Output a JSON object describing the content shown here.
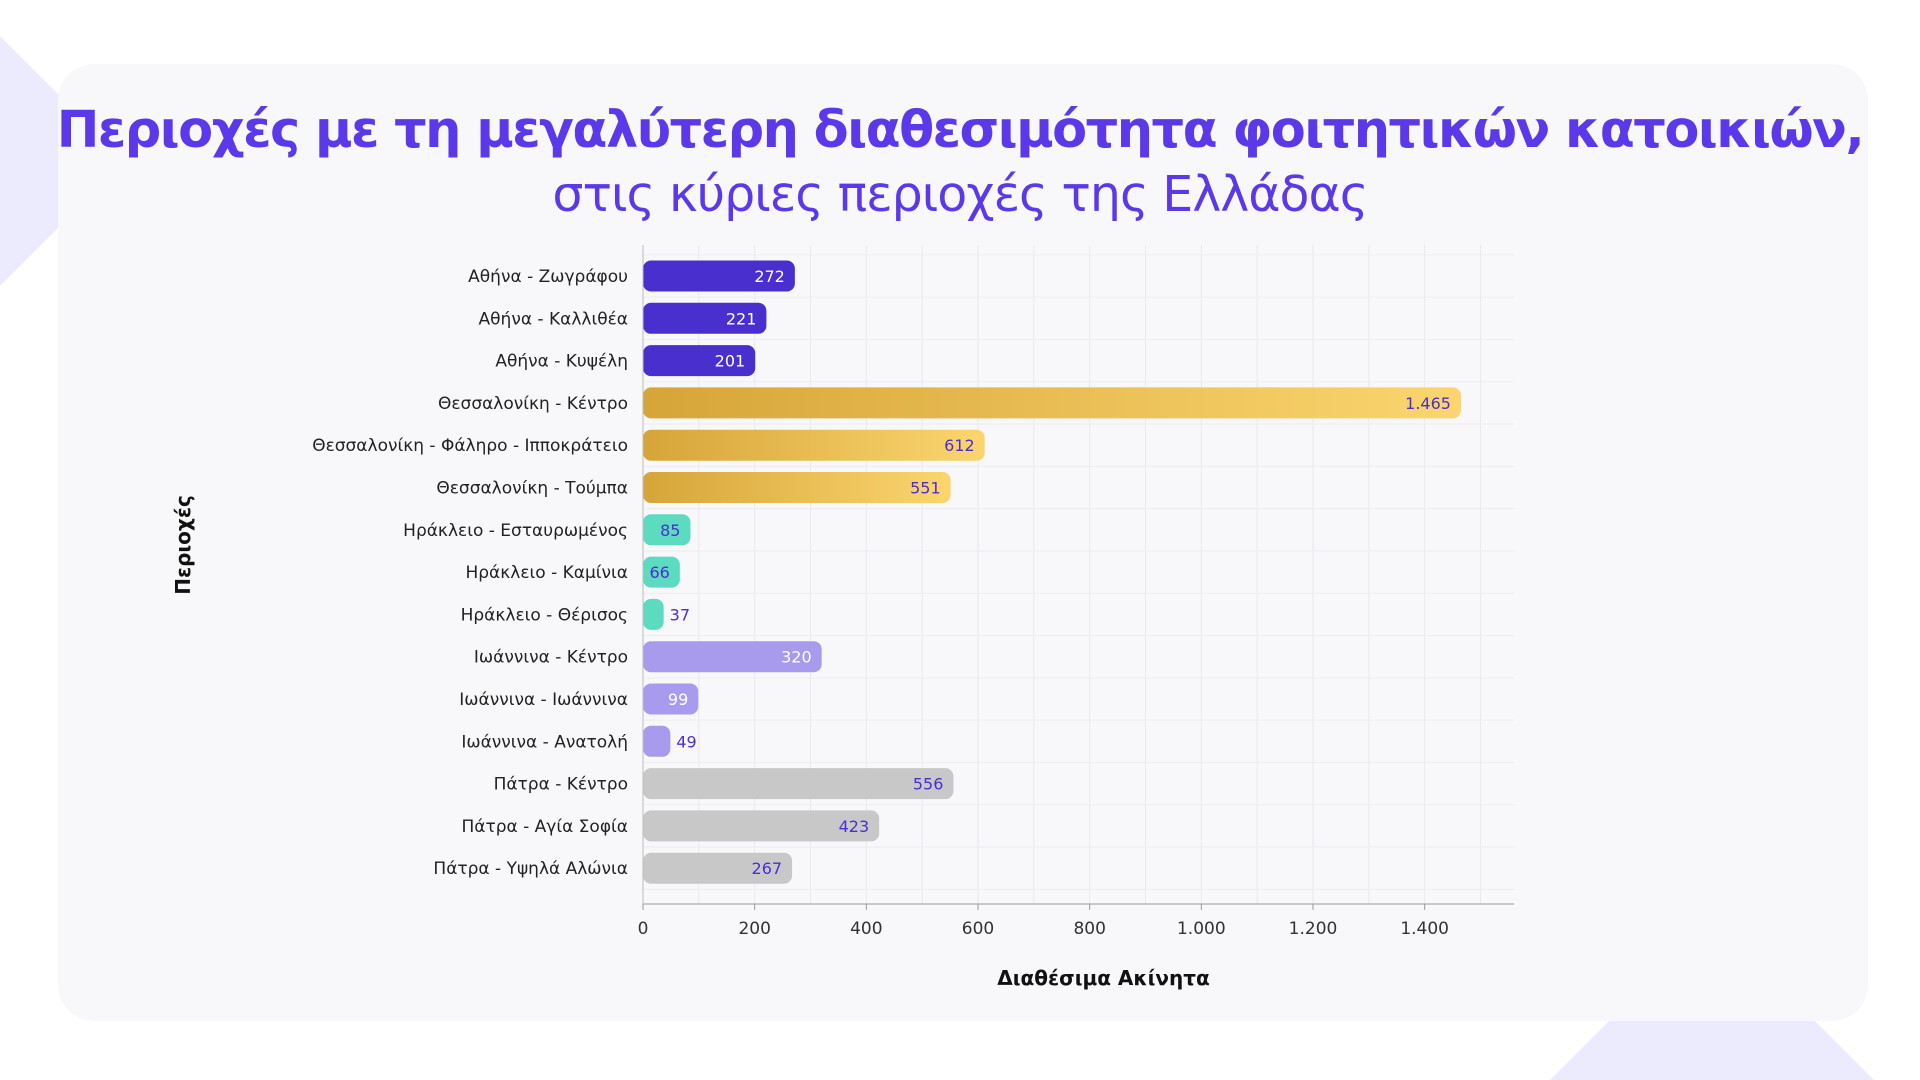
{
  "title": {
    "main": "Περιοχές με τη μεγαλύτερη διαθεσιμότητα φοιτητικών κατοικιών,",
    "sub": "στις κύριες περιοχές της Ελλάδας"
  },
  "icons": {
    "decoration": "graduation-cap-icon"
  },
  "colors": {
    "title": "#5b39ea",
    "athens": "#4a2fcf",
    "thessaloniki_start": "#d6a539",
    "thessaloniki_end": "#fbd56f",
    "heraklion": "#5ddbc0",
    "ioannina": "#a89bed",
    "patra": "#c8c8c8",
    "decoration": "#ecebfd"
  },
  "chart_data": {
    "type": "bar",
    "orientation": "horizontal",
    "categories": [
      "Αθήνα - Ζωγράφου",
      "Αθήνα - Καλλιθέα",
      "Αθήνα - Κυψέλη",
      "Θεσσαλονίκη - Κέντρο",
      "Θεσσαλονίκη - Φάληρο - Ιπποκράτειο",
      "Θεσσαλονίκη - Τούμπα",
      "Ηράκλειο - Εσταυρωμένος",
      "Ηράκλειο - Καμίνια",
      "Ηράκλειο - Θέρισος",
      "Ιωάννινα - Κέντρο",
      "Ιωάννινα - Ιωάννινα",
      "Ιωάννινα - Ανατολή",
      "Πάτρα - Κέντρο",
      "Πάτρα - Αγία Σοφία",
      "Πάτρα - Υψηλά Αλώνια"
    ],
    "values": [
      272,
      221,
      201,
      1465,
      612,
      551,
      85,
      66,
      37,
      320,
      99,
      49,
      556,
      423,
      267
    ],
    "value_labels": [
      "272",
      "221",
      "201",
      "1.465",
      "612",
      "551",
      "85",
      "66",
      "37",
      "320",
      "99",
      "49",
      "556",
      "423",
      "267"
    ],
    "groups": [
      "athens",
      "athens",
      "athens",
      "thessaloniki",
      "thessaloniki",
      "thessaloniki",
      "heraklion",
      "heraklion",
      "heraklion",
      "ioannina",
      "ioannina",
      "ioannina",
      "patra",
      "patra",
      "patra"
    ],
    "xlabel": "Διαθέσιμα Ακίνητα",
    "ylabel": "Περιοχές",
    "xlim": [
      0,
      1560
    ],
    "xticks": [
      0,
      200,
      400,
      600,
      800,
      1000,
      1200,
      1400
    ],
    "xtick_labels": [
      "0",
      "200",
      "400",
      "600",
      "800",
      "1.000",
      "1.200",
      "1.400"
    ],
    "grid": true,
    "legend": "none"
  }
}
